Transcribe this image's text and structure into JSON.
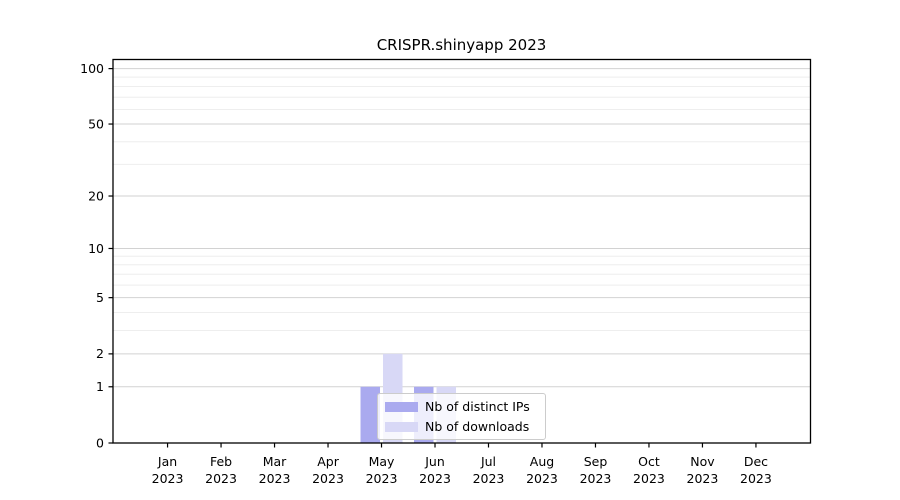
{
  "chart_data": {
    "type": "bar",
    "title": "CRISPR.shinyapp 2023",
    "xlabel": "",
    "ylabel": "",
    "categories": [
      [
        "Jan",
        "2023"
      ],
      [
        "Feb",
        "2023"
      ],
      [
        "Mar",
        "2023"
      ],
      [
        "Apr",
        "2023"
      ],
      [
        "May",
        "2023"
      ],
      [
        "Jun",
        "2023"
      ],
      [
        "Jul",
        "2023"
      ],
      [
        "Aug",
        "2023"
      ],
      [
        "Sep",
        "2023"
      ],
      [
        "Oct",
        "2023"
      ],
      [
        "Nov",
        "2023"
      ],
      [
        "Dec",
        "2023"
      ]
    ],
    "series": [
      {
        "name": "Nb of distinct IPs",
        "color": "#aaaaef",
        "values": [
          0,
          0,
          0,
          0,
          1,
          1,
          0,
          0,
          0,
          0,
          0,
          0
        ]
      },
      {
        "name": "Nb of downloads",
        "color": "#d8d8f6",
        "values": [
          0,
          0,
          0,
          0,
          2,
          1,
          0,
          0,
          0,
          0,
          0,
          0
        ]
      }
    ],
    "yscale": "log1p",
    "ylim": [
      0,
      112
    ],
    "yticks": [
      0,
      1,
      2,
      5,
      10,
      20,
      50,
      100
    ],
    "yticks_minor": [
      3,
      4,
      6,
      7,
      8,
      9,
      30,
      40,
      60,
      70,
      80,
      90
    ],
    "grid": "horizontal",
    "legend_position": "inside-lower-center",
    "colors": {
      "spine": "#000000",
      "grid_major": "#d2d2d2",
      "grid_minor": "#eeeeee",
      "tick_text": "#000000"
    }
  }
}
